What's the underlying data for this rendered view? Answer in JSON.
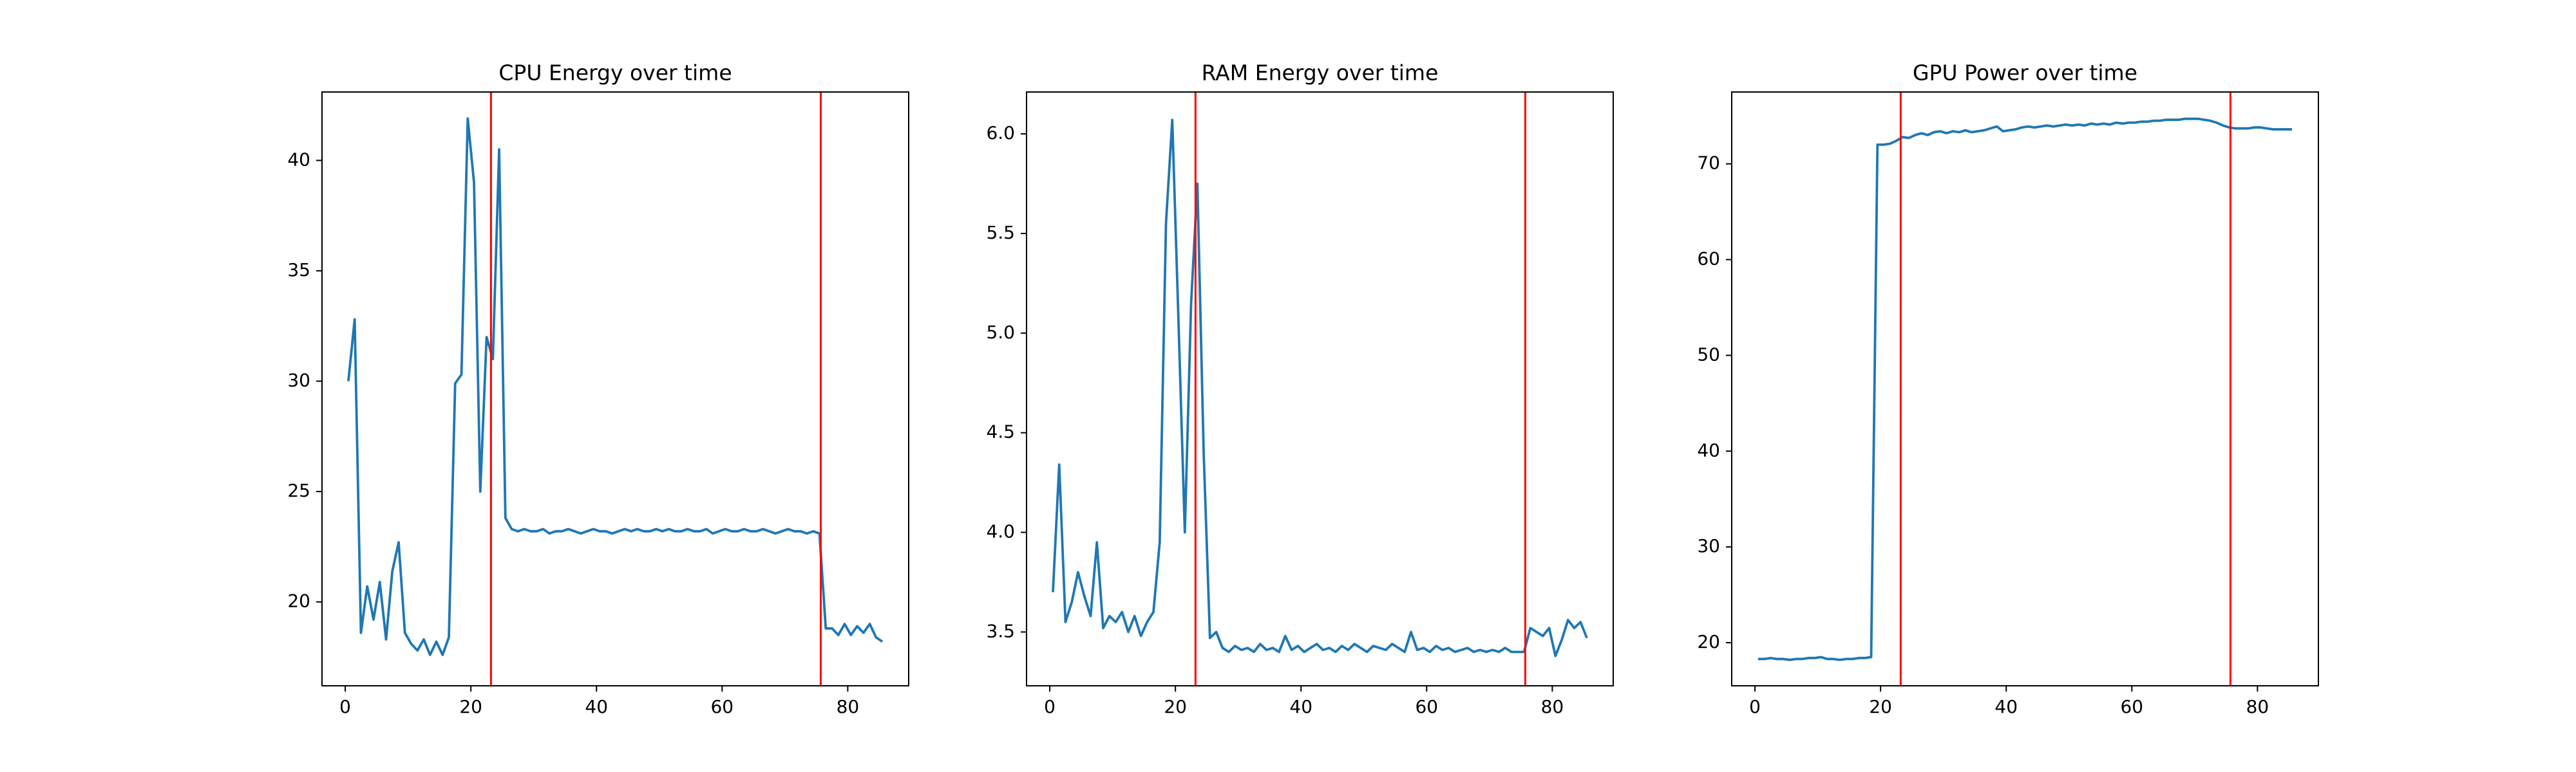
{
  "chart_data": [
    {
      "type": "line",
      "title": "CPU Energy over time",
      "color": "#1f77b4",
      "x": [
        0.5,
        1.5,
        2.5,
        3.5,
        4.5,
        5.5,
        6.5,
        7.5,
        8.5,
        9.5,
        10.5,
        11.5,
        12.5,
        13.5,
        14.5,
        15.5,
        16.5,
        17.5,
        18.5,
        19.5,
        20.5,
        21.5,
        22.5,
        23.5,
        24.5,
        25.5,
        26.5,
        27.5,
        28.5,
        29.5,
        30.5,
        31.5,
        32.5,
        33.5,
        34.5,
        35.5,
        36.5,
        37.5,
        38.5,
        39.5,
        40.5,
        41.5,
        42.5,
        43.5,
        44.5,
        45.5,
        46.5,
        47.5,
        48.5,
        49.5,
        50.5,
        51.5,
        52.5,
        53.5,
        54.5,
        55.5,
        56.5,
        57.5,
        58.5,
        59.5,
        60.5,
        61.5,
        62.5,
        63.5,
        64.5,
        65.5,
        66.5,
        67.5,
        68.5,
        69.5,
        70.5,
        71.5,
        72.5,
        73.5,
        74.5,
        75.5,
        76.5,
        77.5,
        78.5,
        79.5,
        80.5,
        81.5,
        82.5,
        83.5,
        84.5,
        85.5
      ],
      "values": [
        30.0,
        32.8,
        18.6,
        20.7,
        19.2,
        20.9,
        18.3,
        21.4,
        22.7,
        18.6,
        18.1,
        17.8,
        18.3,
        17.6,
        18.2,
        17.6,
        18.4,
        29.9,
        30.3,
        41.9,
        39.0,
        25.0,
        32.0,
        31.0,
        40.5,
        23.8,
        23.3,
        23.2,
        23.3,
        23.2,
        23.2,
        23.3,
        23.1,
        23.2,
        23.2,
        23.3,
        23.2,
        23.1,
        23.2,
        23.3,
        23.2,
        23.2,
        23.1,
        23.2,
        23.3,
        23.2,
        23.3,
        23.2,
        23.2,
        23.3,
        23.2,
        23.3,
        23.2,
        23.2,
        23.3,
        23.2,
        23.2,
        23.3,
        23.1,
        23.2,
        23.3,
        23.2,
        23.2,
        23.3,
        23.2,
        23.2,
        23.3,
        23.2,
        23.1,
        23.2,
        23.3,
        23.2,
        23.2,
        23.1,
        23.2,
        23.1,
        18.8,
        18.8,
        18.5,
        19.0,
        18.5,
        18.9,
        18.6,
        19.0,
        18.4,
        18.2
      ],
      "vlines": [
        23.2,
        75.7
      ],
      "vline_color": "#ff0000",
      "xlim": [
        -3.7,
        89.7
      ],
      "xticks": [
        0,
        20,
        40,
        60,
        80
      ],
      "ylim": [
        16.2,
        43.1
      ],
      "yticks": [
        20,
        25,
        30,
        35,
        40
      ]
    },
    {
      "type": "line",
      "title": "RAM Energy over time",
      "color": "#1f77b4",
      "x": [
        0.5,
        1.5,
        2.5,
        3.5,
        4.5,
        5.5,
        6.5,
        7.5,
        8.5,
        9.5,
        10.5,
        11.5,
        12.5,
        13.5,
        14.5,
        15.5,
        16.5,
        17.5,
        18.5,
        19.5,
        20.5,
        21.5,
        22.5,
        23.5,
        24.5,
        25.5,
        26.5,
        27.5,
        28.5,
        29.5,
        30.5,
        31.5,
        32.5,
        33.5,
        34.5,
        35.5,
        36.5,
        37.5,
        38.5,
        39.5,
        40.5,
        41.5,
        42.5,
        43.5,
        44.5,
        45.5,
        46.5,
        47.5,
        48.5,
        49.5,
        50.5,
        51.5,
        52.5,
        53.5,
        54.5,
        55.5,
        56.5,
        57.5,
        58.5,
        59.5,
        60.5,
        61.5,
        62.5,
        63.5,
        64.5,
        65.5,
        66.5,
        67.5,
        68.5,
        69.5,
        70.5,
        71.5,
        72.5,
        73.5,
        74.5,
        75.5,
        76.5,
        77.5,
        78.5,
        79.5,
        80.5,
        81.5,
        82.5,
        83.5,
        84.5,
        85.5
      ],
      "values": [
        3.7,
        4.34,
        3.55,
        3.65,
        3.8,
        3.68,
        3.58,
        3.95,
        3.52,
        3.58,
        3.55,
        3.6,
        3.5,
        3.58,
        3.48,
        3.55,
        3.6,
        3.95,
        5.55,
        6.07,
        5.05,
        4.0,
        5.15,
        5.75,
        4.4,
        3.47,
        3.5,
        3.42,
        3.4,
        3.43,
        3.41,
        3.42,
        3.4,
        3.44,
        3.41,
        3.42,
        3.4,
        3.48,
        3.41,
        3.43,
        3.4,
        3.42,
        3.44,
        3.41,
        3.42,
        3.4,
        3.43,
        3.41,
        3.44,
        3.42,
        3.4,
        3.43,
        3.42,
        3.41,
        3.44,
        3.42,
        3.4,
        3.5,
        3.41,
        3.42,
        3.4,
        3.43,
        3.41,
        3.42,
        3.4,
        3.41,
        3.42,
        3.4,
        3.41,
        3.4,
        3.41,
        3.4,
        3.42,
        3.4,
        3.4,
        3.4,
        3.52,
        3.5,
        3.48,
        3.52,
        3.38,
        3.46,
        3.56,
        3.52,
        3.55,
        3.47
      ],
      "vlines": [
        23.2,
        75.7
      ],
      "vline_color": "#ff0000",
      "xlim": [
        -3.7,
        89.7
      ],
      "xticks": [
        0,
        20,
        40,
        60,
        80
      ],
      "ylim": [
        3.23,
        6.21
      ],
      "yticks": [
        3.5,
        {
          "value": 4,
          "label": "4.0"
        },
        4.5,
        {
          "value": 5,
          "label": "5.0"
        },
        5.5,
        {
          "value": 6,
          "label": "6.0"
        }
      ]
    },
    {
      "type": "line",
      "title": "GPU Power over time",
      "color": "#1f77b4",
      "x": [
        0.5,
        1.5,
        2.5,
        3.5,
        4.5,
        5.5,
        6.5,
        7.5,
        8.5,
        9.5,
        10.5,
        11.5,
        12.5,
        13.5,
        14.5,
        15.5,
        16.5,
        17.5,
        18.5,
        19.5,
        20.5,
        21.5,
        22.5,
        23.5,
        24.5,
        25.5,
        26.5,
        27.5,
        28.5,
        29.5,
        30.5,
        31.5,
        32.5,
        33.5,
        34.5,
        35.5,
        36.5,
        37.5,
        38.5,
        39.5,
        40.5,
        41.5,
        42.5,
        43.5,
        44.5,
        45.5,
        46.5,
        47.5,
        48.5,
        49.5,
        50.5,
        51.5,
        52.5,
        53.5,
        54.5,
        55.5,
        56.5,
        57.5,
        58.5,
        59.5,
        60.5,
        61.5,
        62.5,
        63.5,
        64.5,
        65.5,
        66.5,
        67.5,
        68.5,
        69.5,
        70.5,
        71.5,
        72.5,
        73.5,
        74.5,
        75.5,
        76.5,
        77.5,
        78.5,
        79.5,
        80.5,
        81.5,
        82.5,
        83.5,
        84.5,
        85.5
      ],
      "values": [
        18.3,
        18.3,
        18.4,
        18.3,
        18.3,
        18.2,
        18.3,
        18.3,
        18.4,
        18.4,
        18.5,
        18.3,
        18.3,
        18.2,
        18.3,
        18.3,
        18.4,
        18.4,
        18.5,
        72.0,
        72.0,
        72.1,
        72.4,
        72.8,
        72.7,
        73.0,
        73.2,
        73.0,
        73.3,
        73.4,
        73.2,
        73.4,
        73.3,
        73.5,
        73.3,
        73.4,
        73.5,
        73.7,
        73.9,
        73.4,
        73.5,
        73.6,
        73.8,
        73.9,
        73.8,
        73.9,
        74.0,
        73.9,
        74.0,
        74.1,
        74.0,
        74.1,
        74.0,
        74.2,
        74.1,
        74.2,
        74.1,
        74.3,
        74.2,
        74.3,
        74.3,
        74.4,
        74.4,
        74.5,
        74.5,
        74.6,
        74.6,
        74.6,
        74.7,
        74.7,
        74.7,
        74.6,
        74.5,
        74.3,
        74.0,
        73.8,
        73.7,
        73.7,
        73.7,
        73.8,
        73.8,
        73.7,
        73.6,
        73.6,
        73.6,
        73.6
      ],
      "vlines": [
        23.2,
        75.7
      ],
      "vline_color": "#ff0000",
      "xlim": [
        -3.7,
        89.7
      ],
      "xticks": [
        0,
        20,
        40,
        60,
        80
      ],
      "ylim": [
        15.5,
        77.5
      ],
      "yticks": [
        20,
        30,
        40,
        50,
        60,
        70
      ]
    }
  ]
}
